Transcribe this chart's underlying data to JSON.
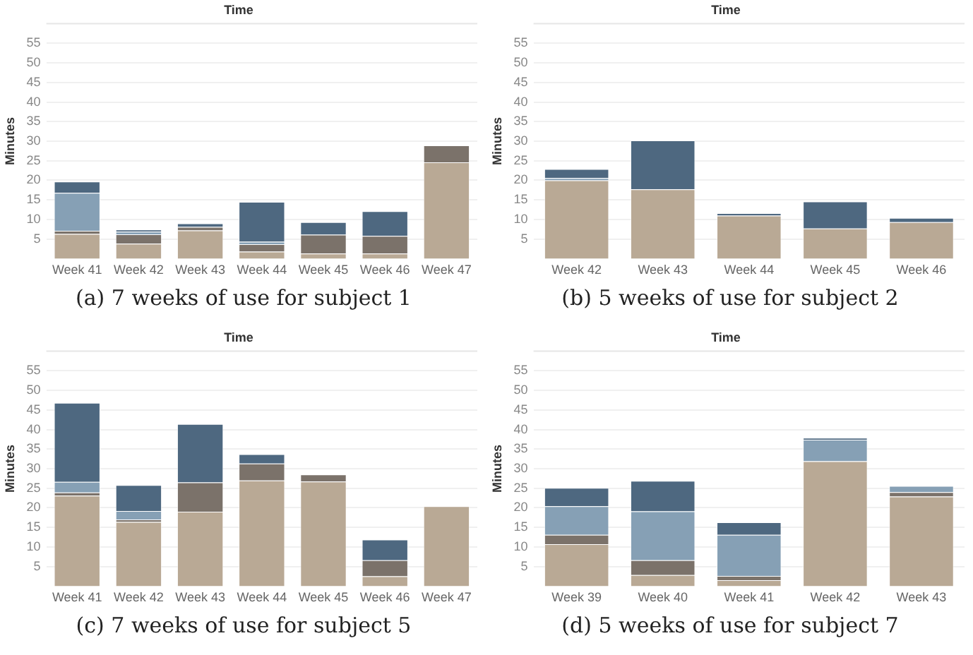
{
  "chart_data": [
    {
      "type": "bar",
      "title": "Time",
      "ylabel": "Minutes",
      "categories": [
        "Week 41",
        "Week 42",
        "Week 43",
        "Week 44",
        "Week 45",
        "Week 46",
        "Week 47"
      ],
      "stacked": true,
      "ylim": [
        0,
        60
      ],
      "yticks": [
        5,
        10,
        15,
        20,
        25,
        30,
        35,
        40,
        45,
        50,
        55
      ],
      "grid": "y",
      "legend": false,
      "annotations": [
        "(a) 7 weeks of use for subject 1"
      ],
      "series": [
        {
          "color": "#b9a995",
          "values": [
            6.3,
            3.8,
            7.2,
            1.8,
            1.3,
            1.3,
            24.6
          ]
        },
        {
          "color": "#7b726a",
          "values": [
            0.8,
            2.4,
            0.9,
            1.9,
            4.8,
            4.5,
            4.3
          ]
        },
        {
          "color": "#86a0b5",
          "values": [
            9.7,
            0.7,
            0,
            0.6,
            0,
            0,
            0
          ]
        },
        {
          "color": "#4e6880",
          "values": [
            2.9,
            0.5,
            0.9,
            10.2,
            3.2,
            6.3,
            0
          ]
        }
      ]
    },
    {
      "type": "bar",
      "title": "Time",
      "ylabel": "Minutes",
      "categories": [
        "Week 42",
        "Week 43",
        "Week 44",
        "Week 45",
        "Week 46"
      ],
      "stacked": true,
      "ylim": [
        0,
        60
      ],
      "yticks": [
        5,
        10,
        15,
        20,
        25,
        30,
        35,
        40,
        45,
        50,
        55
      ],
      "grid": "y",
      "legend": false,
      "annotations": [
        "(b) 5 weeks of use for subject 2"
      ],
      "series": [
        {
          "color": "#b9a995",
          "values": [
            20.0,
            17.7,
            11.0,
            7.7,
            9.3
          ]
        },
        {
          "color": "#86a0b5",
          "values": [
            0.6,
            0,
            0,
            0,
            0
          ]
        },
        {
          "color": "#4e6880",
          "values": [
            2.3,
            12.5,
            0.6,
            6.9,
            1.1
          ]
        }
      ]
    },
    {
      "type": "bar",
      "title": "Time",
      "ylabel": "Minutes",
      "categories": [
        "Week 41",
        "Week 42",
        "Week 43",
        "Week 44",
        "Week 45",
        "Week 46",
        "Week 47"
      ],
      "stacked": true,
      "ylim": [
        0,
        60
      ],
      "yticks": [
        5,
        10,
        15,
        20,
        25,
        30,
        35,
        40,
        45,
        50,
        55
      ],
      "grid": "y",
      "legend": false,
      "annotations": [
        "(c) 7 weeks of use for subject 5"
      ],
      "series": [
        {
          "color": "#b9a995",
          "values": [
            23.1,
            16.4,
            19.0,
            27.0,
            26.7,
            2.5,
            20.4
          ]
        },
        {
          "color": "#7b726a",
          "values": [
            0.8,
            0.6,
            7.5,
            4.3,
            1.8,
            4.1,
            0
          ]
        },
        {
          "color": "#86a0b5",
          "values": [
            2.7,
            2.2,
            0,
            0,
            0,
            0,
            0
          ]
        },
        {
          "color": "#4e6880",
          "values": [
            20.2,
            6.6,
            14.9,
            2.4,
            0,
            5.3,
            0
          ]
        }
      ]
    },
    {
      "type": "bar",
      "title": "Time",
      "ylabel": "Minutes",
      "categories": [
        "Week 39",
        "Week 40",
        "Week 41",
        "Week 42",
        "Week 43"
      ],
      "stacked": true,
      "ylim": [
        0,
        60
      ],
      "yticks": [
        5,
        10,
        15,
        20,
        25,
        30,
        35,
        40,
        45,
        50,
        55
      ],
      "grid": "y",
      "legend": false,
      "annotations": [
        "(d) 5 weeks of use for subject 7"
      ],
      "series": [
        {
          "color": "#b9a995",
          "values": [
            10.7,
            2.8,
            1.5,
            31.9,
            22.9
          ]
        },
        {
          "color": "#7b726a",
          "values": [
            2.4,
            3.8,
            1.1,
            0,
            1.1
          ]
        },
        {
          "color": "#86a0b5",
          "values": [
            7.3,
            12.5,
            10.5,
            5.5,
            1.6
          ]
        },
        {
          "color": "#4e6880",
          "values": [
            4.7,
            7.8,
            3.2,
            0.5,
            null
          ]
        }
      ]
    }
  ]
}
